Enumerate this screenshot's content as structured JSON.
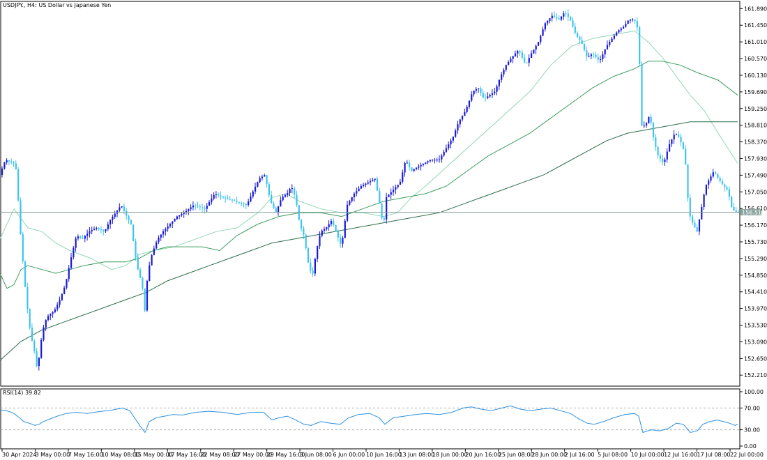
{
  "chart_data": {
    "type": "candlestick",
    "symbol_title": "USDJPY., H4:  US Dollar vs Japanese Yen",
    "current_price": "156.513",
    "price_axis": {
      "ylim": [
        151.92,
        162.08
      ],
      "ticks": [
        "161.890",
        "161.450",
        "161.010",
        "160.570",
        "160.130",
        "159.690",
        "159.250",
        "158.810",
        "158.370",
        "157.930",
        "157.490",
        "157.050",
        "156.610",
        "156.170",
        "155.730",
        "155.290",
        "154.850",
        "154.410",
        "153.970",
        "153.530",
        "153.090",
        "152.650",
        "152.210"
      ]
    },
    "time_axis": {
      "labels": [
        "30 Apr 2024",
        "3 May 00:00",
        "7 May 16:00",
        "10 May 08:00",
        "15 May 00:00",
        "17 May 16:00",
        "22 May 08:00",
        "27 May 00:00",
        "29 May 16:00",
        "3 Jun 08:00",
        "6 Jun 00:00",
        "10 Jun 16:00",
        "13 Jun 08:00",
        "18 Jun 00:00",
        "20 Jun 16:00",
        "25 Jun 08:00",
        "28 Jun 00:00",
        "2 Jul 16:00",
        "5 Jul 08:00",
        "10 Jul 00:00",
        "12 Jul 16:00",
        "17 Jul 08:00",
        "22 Jul 00:00"
      ]
    },
    "close_path": [
      [
        0,
        157.4
      ],
      [
        10,
        157.9
      ],
      [
        22,
        157.8
      ],
      [
        26,
        157.6
      ],
      [
        30,
        156.3
      ],
      [
        36,
        155.0
      ],
      [
        40,
        154.2
      ],
      [
        46,
        153.3
      ],
      [
        52,
        152.8
      ],
      [
        56,
        152.3
      ],
      [
        60,
        153.0
      ],
      [
        66,
        153.6
      ],
      [
        72,
        153.8
      ],
      [
        80,
        153.9
      ],
      [
        88,
        154.2
      ],
      [
        96,
        154.6
      ],
      [
        104,
        155.3
      ],
      [
        112,
        155.9
      ],
      [
        120,
        155.8
      ],
      [
        130,
        156.0
      ],
      [
        140,
        156.1
      ],
      [
        152,
        156.0
      ],
      [
        160,
        156.3
      ],
      [
        168,
        156.5
      ],
      [
        176,
        156.7
      ],
      [
        184,
        156.4
      ],
      [
        190,
        156.2
      ],
      [
        196,
        155.4
      ],
      [
        200,
        155.0
      ],
      [
        206,
        154.6
      ],
      [
        210,
        153.9
      ],
      [
        214,
        154.9
      ],
      [
        220,
        155.4
      ],
      [
        228,
        155.8
      ],
      [
        236,
        156.0
      ],
      [
        246,
        156.2
      ],
      [
        256,
        156.4
      ],
      [
        266,
        156.5
      ],
      [
        280,
        156.7
      ],
      [
        296,
        156.6
      ],
      [
        310,
        157.0
      ],
      [
        322,
        156.9
      ],
      [
        340,
        156.8
      ],
      [
        356,
        156.7
      ],
      [
        366,
        157.1
      ],
      [
        374,
        157.4
      ],
      [
        382,
        157.5
      ],
      [
        390,
        156.8
      ],
      [
        398,
        156.5
      ],
      [
        406,
        156.9
      ],
      [
        414,
        157.0
      ],
      [
        420,
        157.2
      ],
      [
        426,
        156.9
      ],
      [
        432,
        156.2
      ],
      [
        438,
        155.9
      ],
      [
        444,
        155.2
      ],
      [
        450,
        154.8
      ],
      [
        456,
        155.5
      ],
      [
        462,
        156.0
      ],
      [
        470,
        156.1
      ],
      [
        478,
        156.3
      ],
      [
        486,
        155.9
      ],
      [
        492,
        155.6
      ],
      [
        500,
        156.7
      ],
      [
        510,
        157.0
      ],
      [
        520,
        157.2
      ],
      [
        530,
        157.3
      ],
      [
        540,
        157.4
      ],
      [
        546,
        156.8
      ],
      [
        552,
        156.1
      ],
      [
        556,
        156.9
      ],
      [
        566,
        157.1
      ],
      [
        576,
        157.3
      ],
      [
        584,
        157.9
      ],
      [
        592,
        157.6
      ],
      [
        600,
        157.7
      ],
      [
        610,
        157.8
      ],
      [
        620,
        157.9
      ],
      [
        632,
        157.9
      ],
      [
        642,
        158.2
      ],
      [
        652,
        158.5
      ],
      [
        660,
        158.9
      ],
      [
        670,
        159.2
      ],
      [
        680,
        159.7
      ],
      [
        688,
        159.8
      ],
      [
        696,
        159.5
      ],
      [
        704,
        159.6
      ],
      [
        712,
        159.7
      ],
      [
        720,
        160.1
      ],
      [
        728,
        160.4
      ],
      [
        736,
        160.6
      ],
      [
        746,
        160.8
      ],
      [
        756,
        160.4
      ],
      [
        764,
        160.7
      ],
      [
        774,
        161.0
      ],
      [
        784,
        161.5
      ],
      [
        794,
        161.7
      ],
      [
        804,
        161.6
      ],
      [
        812,
        161.8
      ],
      [
        820,
        161.6
      ],
      [
        828,
        161.2
      ],
      [
        836,
        161.0
      ],
      [
        844,
        160.6
      ],
      [
        852,
        160.7
      ],
      [
        862,
        160.5
      ],
      [
        872,
        160.9
      ],
      [
        880,
        161.1
      ],
      [
        888,
        161.3
      ],
      [
        896,
        161.4
      ],
      [
        904,
        161.6
      ],
      [
        912,
        161.6
      ],
      [
        918,
        161.3
      ],
      [
        922,
        158.8
      ],
      [
        928,
        158.8
      ],
      [
        934,
        159.1
      ],
      [
        940,
        158.4
      ],
      [
        946,
        158.0
      ],
      [
        954,
        157.8
      ],
      [
        962,
        158.3
      ],
      [
        970,
        158.6
      ],
      [
        976,
        158.5
      ],
      [
        982,
        158.2
      ],
      [
        986,
        157.7
      ],
      [
        990,
        156.5
      ],
      [
        996,
        156.2
      ],
      [
        1002,
        156.0
      ],
      [
        1008,
        156.6
      ],
      [
        1014,
        157.2
      ],
      [
        1020,
        157.4
      ],
      [
        1026,
        157.6
      ],
      [
        1032,
        157.4
      ],
      [
        1040,
        157.2
      ],
      [
        1046,
        157.1
      ],
      [
        1052,
        156.6
      ],
      [
        1058,
        156.51
      ]
    ],
    "ma_fast": [
      [
        0,
        154.9
      ],
      [
        10,
        154.5
      ],
      [
        20,
        154.6
      ],
      [
        30,
        155.0
      ],
      [
        40,
        155.1
      ],
      [
        60,
        155.0
      ],
      [
        80,
        154.9
      ],
      [
        100,
        155.0
      ],
      [
        120,
        155.1
      ],
      [
        150,
        155.2
      ],
      [
        180,
        155.2
      ],
      [
        200,
        155.3
      ],
      [
        220,
        155.5
      ],
      [
        240,
        155.6
      ],
      [
        260,
        155.6
      ],
      [
        290,
        155.6
      ],
      [
        315,
        155.5
      ],
      [
        340,
        155.9
      ],
      [
        370,
        156.2
      ],
      [
        400,
        156.4
      ],
      [
        430,
        156.5
      ],
      [
        460,
        156.5
      ],
      [
        490,
        156.4
      ],
      [
        520,
        156.6
      ],
      [
        550,
        156.8
      ],
      [
        580,
        156.9
      ],
      [
        610,
        157.0
      ],
      [
        640,
        157.2
      ],
      [
        670,
        157.6
      ],
      [
        700,
        158.0
      ],
      [
        730,
        158.3
      ],
      [
        760,
        158.6
      ],
      [
        790,
        159.0
      ],
      [
        820,
        159.4
      ],
      [
        850,
        159.8
      ],
      [
        880,
        160.1
      ],
      [
        910,
        160.3
      ],
      [
        930,
        160.5
      ],
      [
        950,
        160.5
      ],
      [
        975,
        160.4
      ],
      [
        1000,
        160.2
      ],
      [
        1030,
        160.0
      ],
      [
        1058,
        159.6
      ]
    ],
    "ma_slow": [
      [
        0,
        152.6
      ],
      [
        30,
        153.1
      ],
      [
        60,
        153.4
      ],
      [
        90,
        153.6
      ],
      [
        120,
        153.8
      ],
      [
        150,
        154.0
      ],
      [
        180,
        154.2
      ],
      [
        210,
        154.4
      ],
      [
        240,
        154.7
      ],
      [
        270,
        154.9
      ],
      [
        300,
        155.1
      ],
      [
        330,
        155.3
      ],
      [
        360,
        155.5
      ],
      [
        390,
        155.7
      ],
      [
        420,
        155.8
      ],
      [
        450,
        155.9
      ],
      [
        480,
        156.0
      ],
      [
        510,
        156.1
      ],
      [
        540,
        156.2
      ],
      [
        570,
        156.3
      ],
      [
        600,
        156.4
      ],
      [
        630,
        156.5
      ],
      [
        660,
        156.7
      ],
      [
        690,
        156.9
      ],
      [
        720,
        157.1
      ],
      [
        750,
        157.3
      ],
      [
        780,
        157.5
      ],
      [
        810,
        157.8
      ],
      [
        840,
        158.1
      ],
      [
        870,
        158.4
      ],
      [
        900,
        158.6
      ],
      [
        930,
        158.7
      ],
      [
        960,
        158.8
      ],
      [
        990,
        158.9
      ],
      [
        1020,
        158.9
      ],
      [
        1058,
        158.9
      ]
    ],
    "ma_light": [
      [
        0,
        155.8
      ],
      [
        20,
        156.6
      ],
      [
        40,
        156.1
      ],
      [
        60,
        156.0
      ],
      [
        80,
        155.7
      ],
      [
        100,
        155.5
      ],
      [
        130,
        155.3
      ],
      [
        160,
        155.0
      ],
      [
        180,
        155.1
      ],
      [
        200,
        155.4
      ],
      [
        220,
        155.5
      ],
      [
        250,
        155.6
      ],
      [
        280,
        155.8
      ],
      [
        310,
        156.0
      ],
      [
        340,
        156.1
      ],
      [
        370,
        156.5
      ],
      [
        390,
        156.9
      ],
      [
        410,
        157.0
      ],
      [
        430,
        156.8
      ],
      [
        460,
        156.6
      ],
      [
        490,
        156.5
      ],
      [
        520,
        156.5
      ],
      [
        550,
        156.4
      ],
      [
        570,
        156.5
      ],
      [
        590,
        156.9
      ],
      [
        610,
        157.2
      ],
      [
        640,
        157.7
      ],
      [
        670,
        158.2
      ],
      [
        700,
        158.7
      ],
      [
        730,
        159.2
      ],
      [
        760,
        159.7
      ],
      [
        790,
        160.4
      ],
      [
        820,
        160.9
      ],
      [
        850,
        161.1
      ],
      [
        880,
        161.2
      ],
      [
        910,
        161.3
      ],
      [
        930,
        161.0
      ],
      [
        950,
        160.6
      ],
      [
        970,
        160.1
      ],
      [
        990,
        159.6
      ],
      [
        1010,
        159.2
      ],
      [
        1030,
        158.6
      ],
      [
        1058,
        157.8
      ]
    ],
    "rsi": {
      "label": "RSI(14) 39.82",
      "ylim": [
        0,
        100
      ],
      "levels": [
        70,
        30
      ],
      "ticks": [
        "100.00",
        "70.00",
        "30.00",
        "0.00"
      ],
      "values": [
        [
          0,
          66
        ],
        [
          10,
          65
        ],
        [
          20,
          60
        ],
        [
          28,
          52
        ],
        [
          34,
          45
        ],
        [
          42,
          42
        ],
        [
          50,
          38
        ],
        [
          56,
          40
        ],
        [
          62,
          45
        ],
        [
          72,
          50
        ],
        [
          82,
          55
        ],
        [
          95,
          60
        ],
        [
          110,
          62
        ],
        [
          125,
          60
        ],
        [
          140,
          63
        ],
        [
          160,
          66
        ],
        [
          176,
          70
        ],
        [
          186,
          65
        ],
        [
          194,
          50
        ],
        [
          202,
          35
        ],
        [
          208,
          25
        ],
        [
          214,
          45
        ],
        [
          224,
          52
        ],
        [
          236,
          55
        ],
        [
          248,
          58
        ],
        [
          262,
          57
        ],
        [
          280,
          62
        ],
        [
          300,
          64
        ],
        [
          320,
          62
        ],
        [
          340,
          58
        ],
        [
          360,
          62
        ],
        [
          378,
          62
        ],
        [
          390,
          48
        ],
        [
          400,
          52
        ],
        [
          412,
          55
        ],
        [
          424,
          48
        ],
        [
          436,
          40
        ],
        [
          446,
          38
        ],
        [
          460,
          45
        ],
        [
          474,
          42
        ],
        [
          488,
          40
        ],
        [
          500,
          52
        ],
        [
          514,
          58
        ],
        [
          530,
          60
        ],
        [
          544,
          52
        ],
        [
          552,
          40
        ],
        [
          564,
          52
        ],
        [
          580,
          55
        ],
        [
          596,
          58
        ],
        [
          612,
          60
        ],
        [
          630,
          58
        ],
        [
          648,
          62
        ],
        [
          664,
          70
        ],
        [
          676,
          72
        ],
        [
          690,
          68
        ],
        [
          704,
          65
        ],
        [
          720,
          70
        ],
        [
          732,
          74
        ],
        [
          746,
          68
        ],
        [
          760,
          65
        ],
        [
          776,
          68
        ],
        [
          790,
          70
        ],
        [
          804,
          65
        ],
        [
          818,
          60
        ],
        [
          830,
          50
        ],
        [
          842,
          42
        ],
        [
          852,
          40
        ],
        [
          866,
          45
        ],
        [
          880,
          52
        ],
        [
          896,
          58
        ],
        [
          910,
          60
        ],
        [
          916,
          55
        ],
        [
          922,
          25
        ],
        [
          934,
          30
        ],
        [
          946,
          28
        ],
        [
          958,
          32
        ],
        [
          970,
          42
        ],
        [
          980,
          40
        ],
        [
          990,
          25
        ],
        [
          1000,
          28
        ],
        [
          1008,
          40
        ],
        [
          1018,
          45
        ],
        [
          1028,
          48
        ],
        [
          1038,
          45
        ],
        [
          1046,
          42
        ],
        [
          1054,
          38
        ],
        [
          1058,
          39.82
        ]
      ]
    }
  }
}
